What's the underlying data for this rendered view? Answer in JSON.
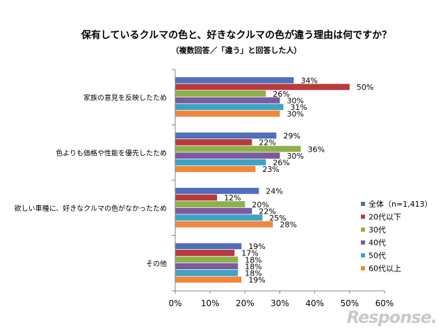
{
  "chart_data": {
    "type": "bar",
    "orientation": "horizontal",
    "title": "保有しているクルマの色と、好きなクルマの色が違う理由は何ですか？",
    "subtitle": "（複数回答／「違う」と回答した人）",
    "categories": [
      "家族の意見を反映したため",
      "色よりも価格や性能を優先したため",
      "欲しい車種に、好きなクルマの色がなかったため",
      "その他"
    ],
    "series": [
      {
        "name": "全体（n=1,413）",
        "color": "#4f6fb8",
        "values": [
          34,
          29,
          24,
          19
        ]
      },
      {
        "name": "20代以下",
        "color": "#b83a3c",
        "values": [
          50,
          22,
          12,
          17
        ]
      },
      {
        "name": "30代",
        "color": "#8fb14a",
        "values": [
          26,
          36,
          20,
          18
        ]
      },
      {
        "name": "40代",
        "color": "#7b5a9e",
        "values": [
          30,
          30,
          22,
          18
        ]
      },
      {
        "name": "50代",
        "color": "#3ea2c3",
        "values": [
          31,
          26,
          25,
          18
        ]
      },
      {
        "name": "60代以上",
        "color": "#f0873a",
        "values": [
          30,
          23,
          28,
          19
        ]
      }
    ],
    "value_suffix": "%",
    "xlim": [
      0,
      60
    ],
    "xticks": [
      "0%",
      "10%",
      "20%",
      "30%",
      "40%",
      "50%",
      "60%"
    ],
    "legend_position": "right",
    "grid": false
  },
  "watermark": "Response."
}
